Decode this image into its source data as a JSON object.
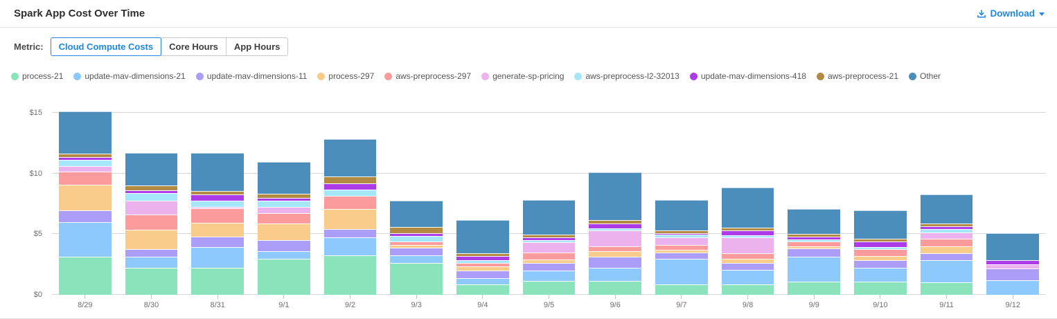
{
  "header": {
    "title": "Spark App Cost Over Time",
    "download_label": "Download"
  },
  "metric": {
    "label": "Metric:",
    "options": [
      "Cloud Compute Costs",
      "Core Hours",
      "App Hours"
    ],
    "selected": "Cloud Compute Costs"
  },
  "colors": {
    "accent_blue": "#1E87E5",
    "gridline": "#d4d6d8",
    "axis_text": "#6e6e6e"
  },
  "chart_data": {
    "type": "bar",
    "stacked": true,
    "title": "Spark App Cost Over Time",
    "xlabel": "",
    "ylabel": "",
    "y_unit": "$",
    "ylim": [
      0,
      15.45
    ],
    "y_tick_values": [
      0,
      5,
      10,
      15
    ],
    "y_tick_labels": [
      "$0",
      "$5",
      "$10",
      "$15"
    ],
    "grid": "horizontal",
    "legend_position": "top",
    "categories": [
      "8/29",
      "8/30",
      "8/31",
      "9/1",
      "9/2",
      "9/3",
      "9/4",
      "9/5",
      "9/6",
      "9/7",
      "9/8",
      "9/9",
      "9/10",
      "9/11",
      "9/12"
    ],
    "series": [
      {
        "name": "process-21",
        "color": "#8BE3BB",
        "values": [
          3.13,
          2.24,
          2.24,
          2.94,
          3.23,
          2.62,
          0.87,
          1.14,
          1.14,
          0.87,
          0.87,
          1.06,
          1.06,
          1.01,
          0
        ]
      },
      {
        "name": "update-mav-dimensions-21",
        "color": "#8DC9FC",
        "values": [
          2.86,
          0.91,
          1.67,
          0.66,
          1.48,
          0.61,
          0.51,
          0.87,
          1.06,
          2.09,
          1.21,
          2.09,
          1.18,
          1.84,
          1.2
        ]
      },
      {
        "name": "update-mav-dimensions-11",
        "color": "#AB9DF8",
        "values": [
          0.99,
          0.61,
          0.89,
          0.91,
          0.72,
          0.63,
          0.63,
          0.61,
          0.95,
          0.51,
          0.53,
          0.65,
          0.61,
          0.57,
          0.95
        ]
      },
      {
        "name": "process-297",
        "color": "#F9CC8C",
        "values": [
          2.08,
          1.61,
          1.14,
          1.37,
          1.65,
          0.25,
          0.32,
          0.28,
          0.46,
          0.25,
          0.34,
          0.19,
          0.34,
          0.57,
          0
        ]
      },
      {
        "name": "aws-preprocess-297",
        "color": "#FC9B9B",
        "values": [
          1.1,
          1.24,
          1.2,
          0.82,
          1.08,
          0.27,
          0.32,
          0.57,
          0.38,
          0.38,
          0.46,
          0.4,
          0.57,
          0.63,
          0
        ]
      },
      {
        "name": "generate-sp-pricing",
        "color": "#ECB2EE",
        "values": [
          0.42,
          1.14,
          0.1,
          0.53,
          0,
          0,
          0,
          0.89,
          1.33,
          0.65,
          1.33,
          0,
          0,
          0.53,
          0.38
        ]
      },
      {
        "name": "aws-preprocess-l2-32013",
        "color": "#A6E6FA",
        "values": [
          0.51,
          0.61,
          0.51,
          0.51,
          0.49,
          0.49,
          0.19,
          0.15,
          0.15,
          0.19,
          0.19,
          0.17,
          0.19,
          0.27,
          0
        ]
      },
      {
        "name": "update-mav-dimensions-418",
        "color": "#AC3BE8",
        "values": [
          0.28,
          0.24,
          0.51,
          0.23,
          0.51,
          0.19,
          0.38,
          0.23,
          0.42,
          0.15,
          0.38,
          0.21,
          0.42,
          0.21,
          0.32
        ]
      },
      {
        "name": "aws-preprocess-21",
        "color": "#B28A42",
        "values": [
          0.28,
          0.38,
          0.28,
          0.34,
          0.57,
          0.51,
          0.19,
          0.25,
          0.25,
          0.23,
          0.21,
          0.23,
          0.25,
          0.23,
          0
        ]
      },
      {
        "name": "Other",
        "color": "#4C8EBB",
        "values": [
          3.47,
          2.69,
          3.13,
          2.66,
          3.1,
          2.19,
          2.77,
          2.85,
          3.93,
          2.52,
          3.3,
          2.05,
          2.33,
          2.41,
          2.22
        ]
      }
    ],
    "bar_totals": [
      15.12,
      11.67,
      11.67,
      10.97,
      12.83,
      7.76,
      6.18,
      7.84,
      10.07,
      7.84,
      8.82,
      7.05,
      6.95,
      8.27,
      5.07
    ]
  }
}
